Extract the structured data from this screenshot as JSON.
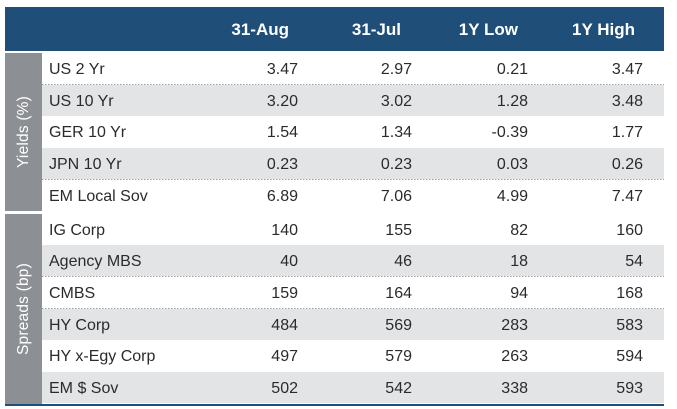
{
  "header": {
    "columns": [
      "31-Aug",
      "31-Jul",
      "1Y Low",
      "1Y High"
    ]
  },
  "groups": [
    {
      "label": "Yields (%)",
      "rows": [
        {
          "name": "US 2 Yr",
          "values": [
            "3.47",
            "2.97",
            "0.21",
            "3.47"
          ]
        },
        {
          "name": "US 10 Yr",
          "values": [
            "3.20",
            "3.02",
            "1.28",
            "3.48"
          ]
        },
        {
          "name": "GER 10 Yr",
          "values": [
            "1.54",
            "1.34",
            "-0.39",
            "1.77"
          ]
        },
        {
          "name": "JPN 10 Yr",
          "values": [
            "0.23",
            "0.23",
            "0.03",
            "0.26"
          ]
        },
        {
          "name": "EM Local Sov",
          "values": [
            "6.89",
            "7.06",
            "4.99",
            "7.47"
          ]
        }
      ]
    },
    {
      "label": "Spreads (bp)",
      "rows": [
        {
          "name": "IG Corp",
          "values": [
            "140",
            "155",
            "82",
            "160"
          ]
        },
        {
          "name": "Agency MBS",
          "values": [
            "40",
            "46",
            "18",
            "54"
          ]
        },
        {
          "name": "CMBS",
          "values": [
            "159",
            "164",
            "94",
            "168"
          ]
        },
        {
          "name": "HY Corp",
          "values": [
            "484",
            "569",
            "283",
            "583"
          ]
        },
        {
          "name": "HY x-Egy Corp",
          "values": [
            "497",
            "579",
            "263",
            "594"
          ]
        },
        {
          "name": "EM $ Sov",
          "values": [
            "502",
            "542",
            "338",
            "593"
          ]
        }
      ]
    }
  ],
  "colors": {
    "header_bg": "#1f4e79",
    "group_bg": "#8c8f93",
    "row_shade": "#e3e4e6"
  }
}
